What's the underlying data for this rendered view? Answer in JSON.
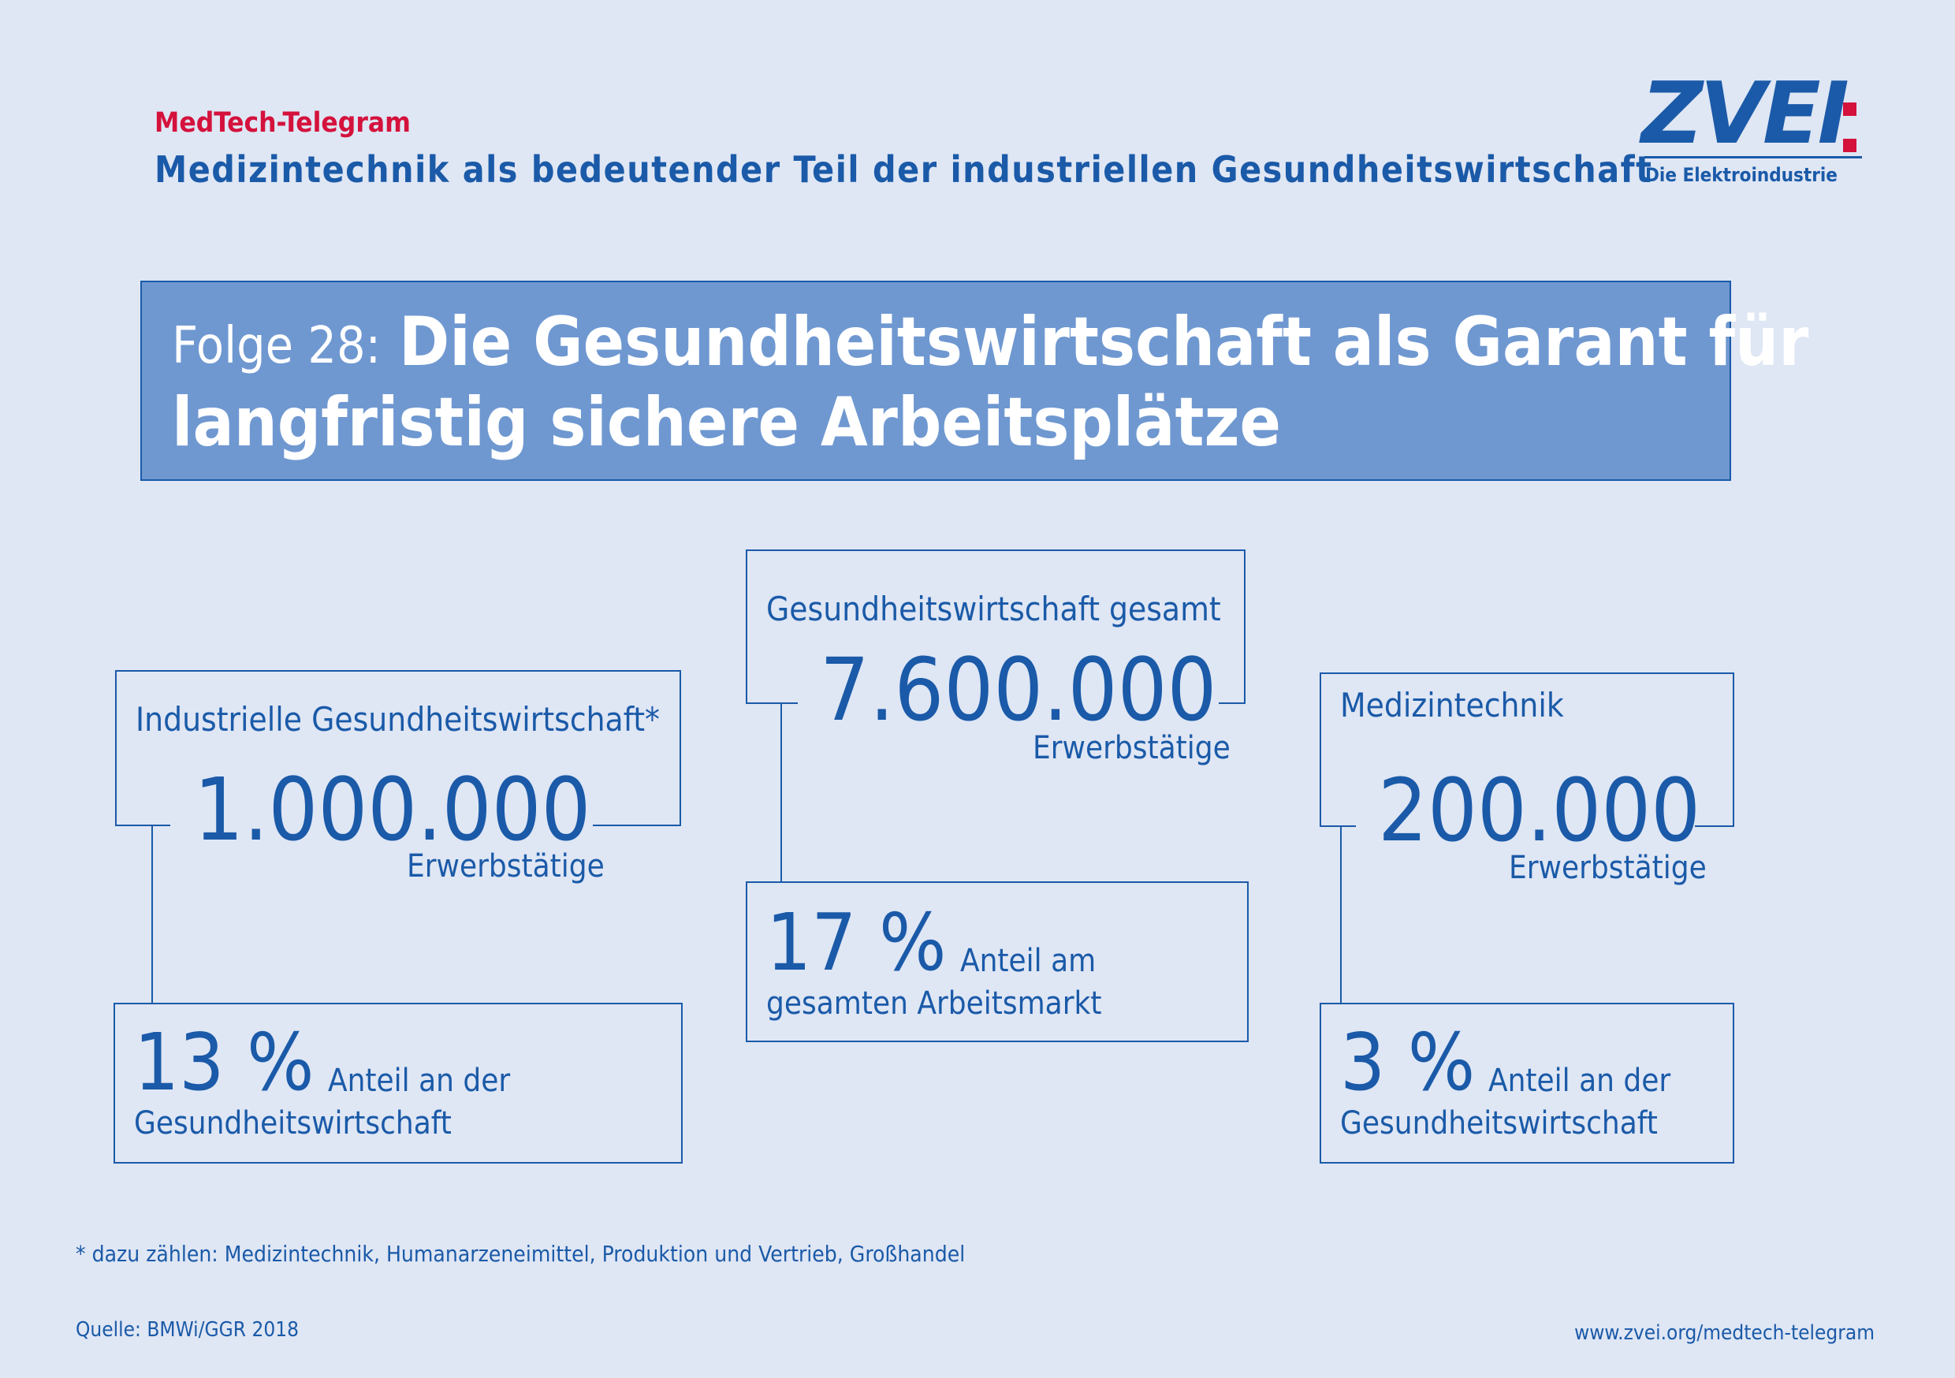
{
  "header": {
    "kicker": "MedTech-Telegram",
    "subtitle": "Medizintechnik als bedeutender Teil der industriellen Gesundheitswirtschaft"
  },
  "logo": {
    "wordmark": "ZVEI",
    "tagline": "Die Elektroindustrie"
  },
  "banner": {
    "prefix": "Folge 28:",
    "line1": "Die Gesundheitswirtschaft als Garant für",
    "line2": "langfristig sichere Arbeitsplätze"
  },
  "left": {
    "heading": "Industrielle Gesundheitswirtschaft*",
    "value": "1.000.000",
    "unit": "Erwerbstätige",
    "pct": "13 %",
    "pct_label1": "Anteil an der",
    "pct_label2": "Gesundheitswirtschaft"
  },
  "center": {
    "heading": "Gesundheitswirtschaft gesamt",
    "value": "7.600.000",
    "unit": "Erwerbstätige",
    "pct": "17 %",
    "pct_label1": "Anteil am",
    "pct_label2": "gesamten Arbeitsmarkt"
  },
  "right": {
    "heading": "Medizintechnik",
    "value": "200.000",
    "unit": "Erwerbstätige",
    "pct": "3 %",
    "pct_label1": "Anteil an der",
    "pct_label2": "Gesundheitswirtschaft"
  },
  "footer": {
    "footnote": "* dazu zählen: Medizintechnik, Humanarzeneimittel, Produktion und Vertrieb, Großhandel",
    "source": "Quelle: BMWi/GGR 2018",
    "url": "www.zvei.org/medtech-telegram"
  },
  "colors": {
    "background": "#dfe6f4",
    "brand_blue": "#1a5aa8",
    "banner_blue": "#6f98d1",
    "accent_red": "#d4123c"
  }
}
